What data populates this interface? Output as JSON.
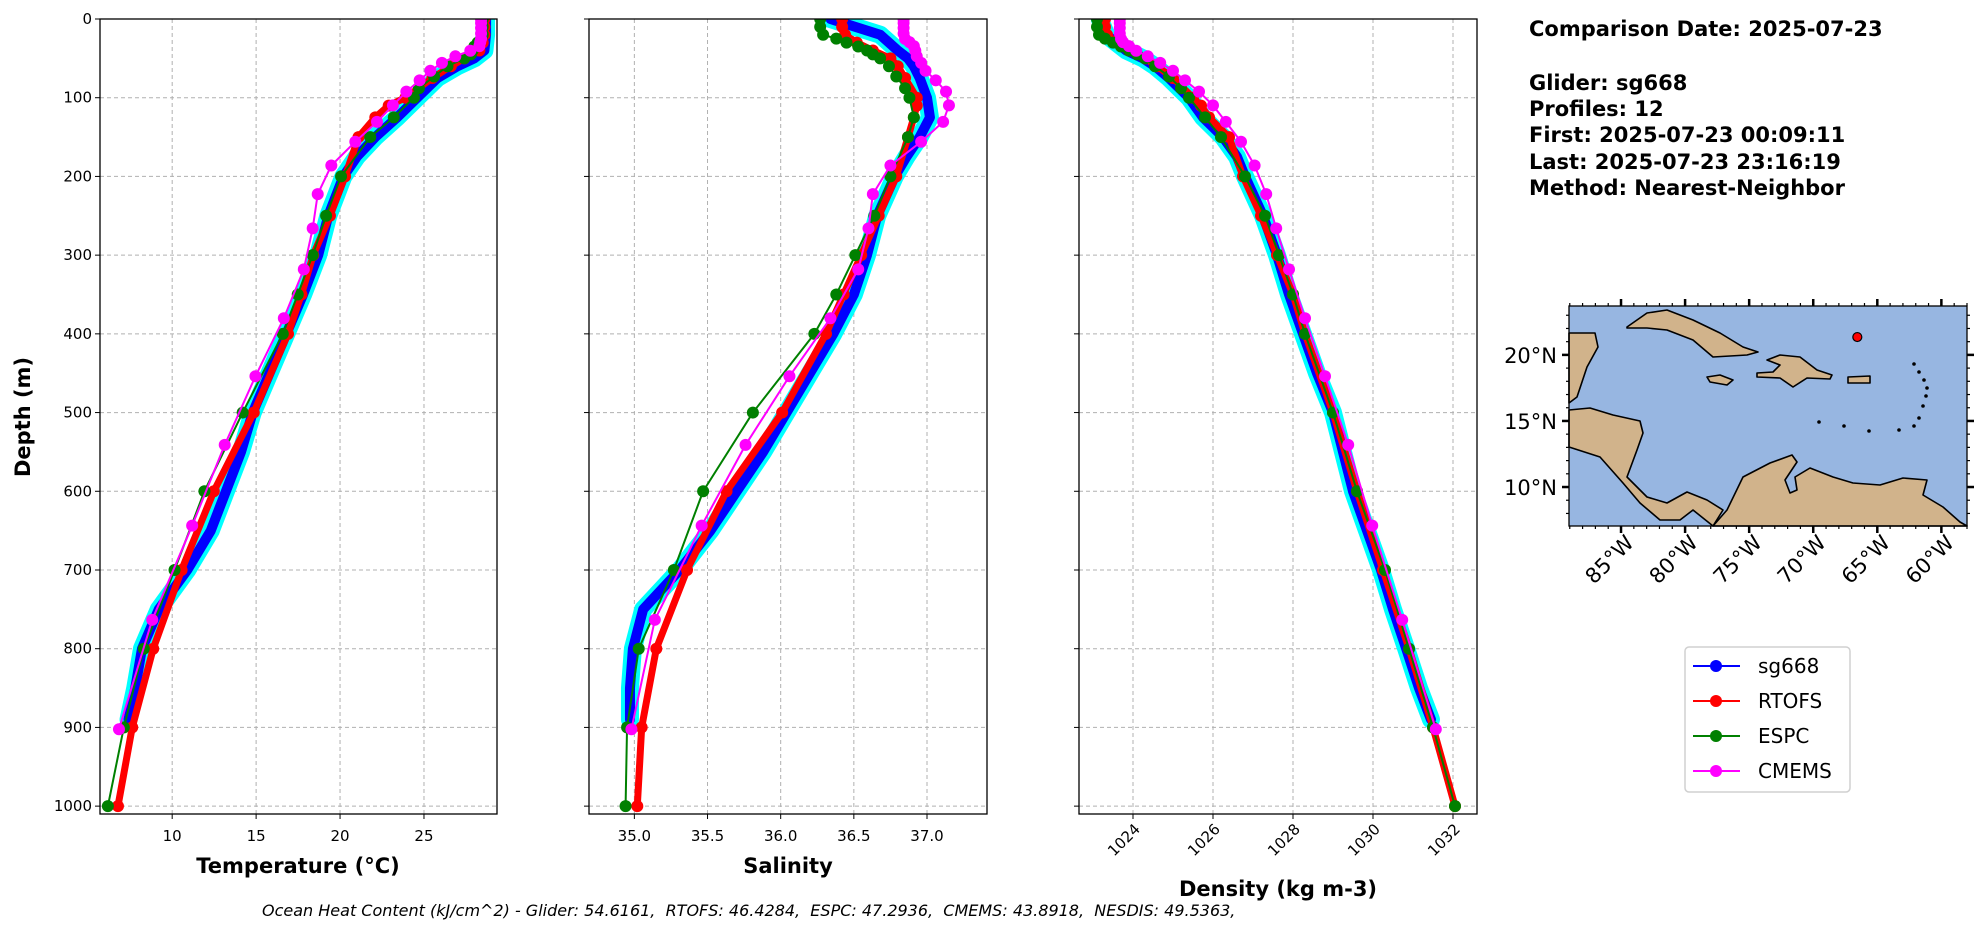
{
  "chart_data": [
    {
      "type": "line",
      "id": "temperature",
      "xlabel": "Temperature (°C)",
      "ylabel": "Depth (m)",
      "xlim": [
        5.7,
        29.35
      ],
      "ylim": [
        1010,
        0
      ],
      "grid": true,
      "xticks": [
        10,
        15,
        20,
        25
      ],
      "xtick_labels": [
        "10",
        "15",
        "20",
        "25"
      ],
      "yticks": [
        0,
        100,
        200,
        300,
        400,
        500,
        600,
        700,
        800,
        900,
        1000
      ],
      "ytick_labels": [
        "0",
        "100",
        "200",
        "300",
        "400",
        "500",
        "600",
        "700",
        "800",
        "900",
        "1000"
      ],
      "series": [
        {
          "name": "sg668",
          "depth": [
            0,
            20,
            40,
            50,
            60,
            75,
            100,
            125,
            150,
            175,
            200,
            250,
            300,
            350,
            400,
            450,
            500,
            550,
            600,
            650,
            700,
            750,
            800,
            850,
            890
          ],
          "values": [
            28.7,
            28.7,
            28.6,
            28.0,
            27.0,
            25.8,
            24.6,
            23.4,
            22.1,
            21.0,
            20.2,
            19.3,
            18.7,
            17.8,
            16.8,
            15.8,
            14.8,
            14.1,
            13.2,
            12.3,
            10.9,
            9.2,
            8.2,
            7.8,
            7.4
          ]
        },
        {
          "name": "RTOFS",
          "depth": [
            0,
            10,
            20,
            30,
            40,
            50,
            60,
            75,
            100,
            110,
            125,
            150,
            200,
            250,
            300,
            350,
            400,
            500,
            600,
            700,
            800,
            900,
            1000
          ],
          "values": [
            28.6,
            28.6,
            28.6,
            28.5,
            28.3,
            27.4,
            26.6,
            25.5,
            23.9,
            22.9,
            22.1,
            21.1,
            20.3,
            19.4,
            18.4,
            17.7,
            16.9,
            14.86,
            12.48,
            10.56,
            8.87,
            7.62,
            6.77
          ]
        },
        {
          "name": "ESPC",
          "depth": [
            0,
            10,
            20,
            25,
            30,
            35,
            40,
            45,
            50,
            60,
            73,
            88,
            100,
            125,
            150,
            200,
            250,
            300,
            350,
            400,
            500,
            600,
            700,
            800,
            900,
            1000
          ],
          "values": [
            28.5,
            28.5,
            28.5,
            28.4,
            28.2,
            28.0,
            27.9,
            27.8,
            27.4,
            26.4,
            25.6,
            24.7,
            24.4,
            23.2,
            21.8,
            20.06,
            19.17,
            18.37,
            17.48,
            16.59,
            14.2,
            11.92,
            10.14,
            8.31,
            7.12,
            6.17
          ]
        },
        {
          "name": "CMEMS",
          "depth": [
            0.5,
            5.1,
            11.4,
            18.5,
            25.2,
            29.4,
            34.4,
            40.3,
            47.4,
            55.8,
            65.8,
            77.9,
            92.3,
            109.7,
            130.7,
            155.9,
            186.1,
            222.5,
            266.0,
            318.1,
            380.2,
            453.9,
            541.1,
            643.6,
            763.3,
            902.3
          ],
          "values": [
            28.4,
            28.4,
            28.4,
            28.4,
            28.4,
            28.35,
            28.3,
            27.76,
            26.87,
            26.07,
            25.38,
            24.74,
            23.95,
            23.15,
            22.2,
            20.91,
            19.48,
            18.67,
            18.37,
            17.84,
            16.65,
            14.96,
            13.13,
            11.19,
            8.81,
            6.83
          ]
        }
      ]
    },
    {
      "type": "line",
      "id": "salinity",
      "xlabel": "Salinity",
      "ylabel": "",
      "xlim": [
        34.69,
        37.41
      ],
      "ylim": [
        1010,
        0
      ],
      "grid": true,
      "xticks": [
        35.0,
        35.5,
        36.0,
        36.5,
        37.0
      ],
      "xtick_labels": [
        "35.0",
        "35.5",
        "36.0",
        "36.5",
        "37.0"
      ],
      "yticks": [
        0,
        100,
        200,
        300,
        400,
        500,
        600,
        700,
        800,
        900,
        1000
      ],
      "series": [
        {
          "name": "sg668",
          "depth": [
            0,
            20,
            40,
            50,
            60,
            75,
            100,
            125,
            150,
            175,
            200,
            250,
            300,
            350,
            400,
            450,
            500,
            550,
            600,
            650,
            700,
            750,
            800,
            850,
            890
          ],
          "values": [
            36.34,
            36.68,
            36.8,
            36.87,
            36.91,
            36.95,
            37.0,
            37.02,
            36.95,
            36.86,
            36.78,
            36.66,
            36.59,
            36.5,
            36.36,
            36.2,
            36.04,
            35.88,
            35.7,
            35.52,
            35.31,
            35.06,
            34.99,
            34.97,
            34.97
          ]
        },
        {
          "name": "RTOFS",
          "depth": [
            0,
            10,
            20,
            30,
            40,
            50,
            60,
            75,
            100,
            110,
            125,
            150,
            200,
            250,
            300,
            350,
            400,
            500,
            600,
            700,
            800,
            900,
            1000
          ],
          "values": [
            36.42,
            36.42,
            36.44,
            36.52,
            36.63,
            36.75,
            36.8,
            36.85,
            36.93,
            36.93,
            36.91,
            36.87,
            36.79,
            36.67,
            36.55,
            36.43,
            36.31,
            36.01,
            35.63,
            35.36,
            35.15,
            35.05,
            35.02
          ]
        },
        {
          "name": "ESPC",
          "depth": [
            0,
            10,
            20,
            25,
            30,
            35,
            40,
            45,
            50,
            60,
            73,
            88,
            100,
            125,
            150,
            200,
            250,
            300,
            350,
            400,
            500,
            600,
            700,
            800,
            900,
            1000
          ],
          "values": [
            36.27,
            36.27,
            36.29,
            36.38,
            36.45,
            36.53,
            36.59,
            36.63,
            36.68,
            36.74,
            36.79,
            36.85,
            36.88,
            36.91,
            36.87,
            36.75,
            36.64,
            36.51,
            36.38,
            36.23,
            35.81,
            35.47,
            35.27,
            35.03,
            34.95,
            34.94
          ]
        },
        {
          "name": "CMEMS",
          "depth": [
            0.5,
            5.1,
            11.4,
            18.5,
            25.2,
            29.4,
            34.4,
            40.3,
            47.4,
            55.8,
            65.8,
            77.9,
            92.3,
            109.7,
            130.7,
            155.9,
            186.1,
            222.5,
            266.0,
            318.1,
            380.2,
            453.9,
            541.1,
            643.6,
            763.3,
            902.3
          ],
          "values": [
            36.84,
            36.84,
            36.84,
            36.84,
            36.85,
            36.88,
            36.91,
            36.92,
            36.93,
            36.96,
            36.99,
            37.06,
            37.13,
            37.15,
            37.11,
            36.96,
            36.75,
            36.63,
            36.6,
            36.53,
            36.34,
            36.06,
            35.76,
            35.46,
            35.14,
            34.98
          ]
        }
      ]
    },
    {
      "type": "line",
      "id": "density",
      "xlabel": "Density (kg m-3)",
      "ylabel": "",
      "xlim": [
        1022.65,
        1032.6
      ],
      "ylim": [
        1010,
        0
      ],
      "grid": true,
      "xticks": [
        1024,
        1026,
        1028,
        1030,
        1032
      ],
      "xtick_labels": [
        "1024",
        "1026",
        "1028",
        "1030",
        "1032"
      ],
      "yticks": [
        0,
        100,
        200,
        300,
        400,
        500,
        600,
        700,
        800,
        900,
        1000
      ],
      "series": [
        {
          "name": "sg668",
          "depth": [
            0,
            20,
            40,
            50,
            60,
            75,
            100,
            125,
            150,
            175,
            200,
            250,
            300,
            350,
            400,
            450,
            500,
            550,
            600,
            650,
            700,
            750,
            800,
            850,
            890
          ],
          "values": [
            1023.17,
            1023.33,
            1023.83,
            1024.25,
            1024.55,
            1024.9,
            1025.4,
            1025.75,
            1026.25,
            1026.6,
            1026.8,
            1027.25,
            1027.6,
            1027.9,
            1028.25,
            1028.6,
            1029.0,
            1029.25,
            1029.5,
            1029.85,
            1030.2,
            1030.5,
            1030.83,
            1031.15,
            1031.45
          ]
        },
        {
          "name": "RTOFS",
          "depth": [
            0,
            10,
            20,
            30,
            40,
            50,
            60,
            75,
            100,
            110,
            125,
            150,
            200,
            250,
            300,
            350,
            400,
            500,
            600,
            700,
            800,
            900,
            1000
          ],
          "values": [
            1023.3,
            1023.3,
            1023.35,
            1023.6,
            1023.9,
            1024.3,
            1024.6,
            1025.0,
            1025.5,
            1025.7,
            1025.9,
            1026.4,
            1026.75,
            1027.2,
            1027.6,
            1028.0,
            1028.3,
            1029.0,
            1029.6,
            1030.25,
            1030.9,
            1031.5,
            1032.05
          ]
        },
        {
          "name": "ESPC",
          "depth": [
            0,
            10,
            20,
            25,
            30,
            35,
            40,
            45,
            50,
            60,
            73,
            88,
            100,
            125,
            150,
            200,
            250,
            300,
            350,
            400,
            500,
            600,
            700,
            800,
            900,
            1000
          ],
          "values": [
            1023.1,
            1023.1,
            1023.15,
            1023.3,
            1023.5,
            1023.7,
            1023.9,
            1024.1,
            1024.3,
            1024.55,
            1024.9,
            1025.2,
            1025.4,
            1025.8,
            1026.2,
            1026.8,
            1027.3,
            1027.65,
            1028.0,
            1028.3,
            1029.0,
            1029.6,
            1030.3,
            1030.9,
            1031.5,
            1032.05
          ]
        },
        {
          "name": "CMEMS",
          "depth": [
            0.5,
            5.1,
            11.4,
            18.5,
            25.2,
            29.4,
            34.4,
            40.3,
            47.4,
            55.8,
            65.8,
            77.9,
            92.3,
            109.7,
            130.7,
            155.9,
            186.1,
            222.5,
            266.0,
            318.1,
            380.2,
            453.9,
            541.1,
            643.6,
            763.3,
            902.3
          ],
          "values": [
            1023.67,
            1023.67,
            1023.67,
            1023.67,
            1023.7,
            1023.75,
            1023.9,
            1024.08,
            1024.37,
            1024.68,
            1025.0,
            1025.3,
            1025.65,
            1026.0,
            1026.32,
            1026.7,
            1027.04,
            1027.33,
            1027.58,
            1027.9,
            1028.3,
            1028.8,
            1029.38,
            1029.98,
            1030.73,
            1031.57
          ]
        }
      ]
    }
  ],
  "series_colors": {
    "sg668": "#0000ff",
    "RTOFS": "#ff0000",
    "ESPC": "#008000",
    "CMEMS": "#ff00ff",
    "glider_profiles": "#00ffff"
  },
  "legend": {
    "placement": "lower-right",
    "entries": [
      "sg668",
      "RTOFS",
      "ESPC",
      "CMEMS"
    ]
  },
  "info": {
    "comparison_date": "Comparison Date: 2025-07-23",
    "glider": "Glider: sg668",
    "profiles": "Profiles: 12",
    "first": "First: 2025-07-23 00:09:11",
    "last": "Last: 2025-07-23 23:16:19",
    "method": "Method: Nearest-Neighbor"
  },
  "map": {
    "lon_range": [
      -89.06,
      -58.0
    ],
    "lat_range": [
      7.05,
      23.7
    ],
    "lon_ticks": [
      -85,
      -80,
      -75,
      -70,
      -65,
      -60
    ],
    "lon_tick_labels": [
      "85°W",
      "80°W",
      "75°W",
      "70°W",
      "65°W",
      "60°W"
    ],
    "lat_ticks": [
      10,
      15,
      20
    ],
    "lat_tick_labels": [
      "10°N",
      "15°N",
      "20°N"
    ],
    "glider_position": {
      "lon": -66.56,
      "lat": 21.35
    },
    "ocean_color": "#97b6e1",
    "land_color": "#d1b38b"
  },
  "footer": "Ocean Heat Content (kJ/cm^2) - Glider: 54.6161,  RTOFS: 46.4284,  ESPC: 47.2936,  CMEMS: 43.8918,  NESDIS: 49.5363,"
}
